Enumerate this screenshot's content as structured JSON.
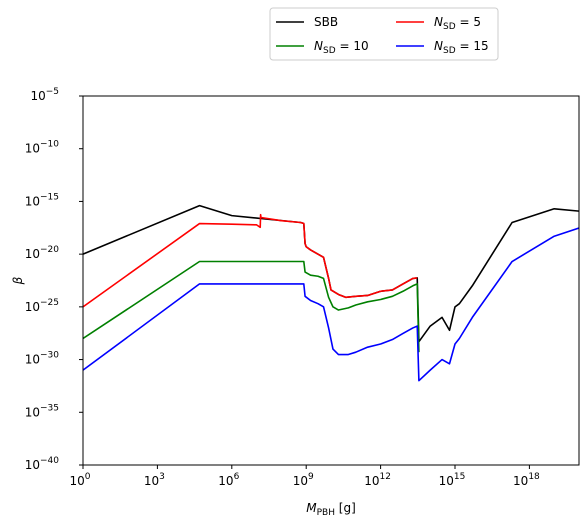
{
  "chart_data": {
    "type": "line",
    "xlabel": "M",
    "xlabel_sub": "PBH",
    "xlabel_unit": " [g]",
    "ylabel": "β",
    "x_scale": "log",
    "y_scale": "log",
    "xlim": [
      1,
      1e+20
    ],
    "ylim": [
      1e-40,
      1e-05
    ],
    "x_ticks": [
      {
        "value": 1,
        "base": "10",
        "exp": "0"
      },
      {
        "value": 1000,
        "base": "10",
        "exp": "3"
      },
      {
        "value": 1000000,
        "base": "10",
        "exp": "6"
      },
      {
        "value": 1000000000,
        "base": "10",
        "exp": "9"
      },
      {
        "value": 1000000000000,
        "base": "10",
        "exp": "12"
      },
      {
        "value": 1000000000000000,
        "base": "10",
        "exp": "15"
      },
      {
        "value": 1000000000000000000,
        "base": "10",
        "exp": "18"
      }
    ],
    "y_ticks": [
      {
        "value": 1e-05,
        "base": "10",
        "exp": "−5"
      },
      {
        "value": 1e-10,
        "base": "10",
        "exp": "−10"
      },
      {
        "value": 1e-15,
        "base": "10",
        "exp": "−15"
      },
      {
        "value": 1e-20,
        "base": "10",
        "exp": "−20"
      },
      {
        "value": 1e-25,
        "base": "10",
        "exp": "−25"
      },
      {
        "value": 1e-30,
        "base": "10",
        "exp": "−30"
      },
      {
        "value": 1e-35,
        "base": "10",
        "exp": "−35"
      },
      {
        "value": 1e-40,
        "base": "10",
        "exp": "−40"
      }
    ],
    "grid": false,
    "legend_position": "top-center",
    "legend_columns": 2,
    "series": [
      {
        "name": "SBB",
        "label_main": "SBB",
        "label_sub": "",
        "label_rest": "",
        "color": "#000000",
        "x": [
          1,
          50000,
          1000000.0,
          600000000.0,
          800000000.0,
          900000000.0,
          1000000000.0,
          1500000000.0,
          3000000000.0,
          5000000000.0,
          8000000000.0,
          10000000000.0,
          20000000000.0,
          40000000000.0,
          100000000000.0,
          300000000000.0,
          1000000000000.0,
          3000000000000.0,
          8000000000000.0,
          20000000000000.0,
          30000000000000.0,
          35000000000000.0,
          100000000000000.0,
          300000000000000.0,
          600000000000000.0,
          1000000000000000.0,
          1500000000000000.0,
          5000000000000000.0,
          2e+17,
          1e+19,
          1e+20
        ],
        "y": [
          1e-20,
          4e-16,
          4.5e-17,
          1e-17,
          8e-18,
          1e-19,
          5e-20,
          2.5e-20,
          1e-20,
          5e-21,
          5e-23,
          4e-24,
          1.5e-24,
          8e-25,
          1e-24,
          1.2e-24,
          3e-24,
          4e-24,
          1.5e-23,
          5e-23,
          5.5e-23,
          5e-29,
          1.5e-27,
          1e-26,
          6e-28,
          1e-25,
          2e-25,
          1e-23,
          1e-17,
          2e-16,
          1.2e-16
        ]
      },
      {
        "name": "N_SD = 5",
        "label_main": "N",
        "label_sub": "SD",
        "label_rest": " = 5",
        "color": "#ff0000",
        "x": [
          1,
          50000,
          1000000.0,
          10000000.0,
          14000000.0,
          14500000.0,
          15000000.0,
          100000000.0,
          600000000.0,
          800000000.0,
          900000000.0,
          1000000000.0,
          1500000000.0,
          3000000000.0,
          5000000000.0,
          8000000000.0,
          10000000000.0,
          20000000000.0,
          40000000000.0,
          100000000000.0,
          300000000000.0,
          1000000000000.0,
          3000000000000.0,
          8000000000000.0,
          20000000000000.0,
          30000000000000.0
        ],
        "y": [
          1e-25,
          8e-18,
          7e-18,
          6e-18,
          3.5e-18,
          5.5e-17,
          3e-17,
          1.5e-17,
          1e-17,
          8e-18,
          1e-19,
          5e-20,
          2.5e-20,
          1e-20,
          5e-21,
          5e-23,
          4e-24,
          1.5e-24,
          8e-25,
          1e-24,
          1.2e-24,
          3e-24,
          4e-24,
          1.5e-23,
          5e-23,
          5.5e-23
        ]
      },
      {
        "name": "N_SD = 10",
        "label_main": "N",
        "label_sub": "SD",
        "label_rest": " = 10",
        "color": "#008000",
        "x": [
          1,
          50000,
          800000000.0,
          900000000.0,
          1500000000.0,
          3000000000.0,
          5000000000.0,
          8000000000.0,
          12000000000.0,
          20000000000.0,
          50000000000.0,
          100000000000.0,
          300000000000.0,
          1000000000000.0,
          3000000000000.0,
          8000000000000.0,
          20000000000000.0,
          30000000000000.0,
          35000000000000.0
        ],
        "y": [
          1e-28,
          2e-21,
          2e-21,
          2e-22,
          1e-22,
          8e-23,
          5e-23,
          8e-25,
          1e-25,
          5e-26,
          8e-26,
          1.5e-25,
          3e-25,
          5e-25,
          1e-24,
          3e-24,
          1e-23,
          1.5e-23,
          5e-30
        ]
      },
      {
        "name": "N_SD = 15",
        "label_main": "N",
        "label_sub": "SD",
        "label_rest": " = 15",
        "color": "#0000ff",
        "x": [
          1,
          50000,
          800000000.0,
          900000000.0,
          1500000000.0,
          3000000000.0,
          5000000000.0,
          8000000000.0,
          12000000000.0,
          20000000000.0,
          50000000000.0,
          100000000000.0,
          300000000000.0,
          1000000000000.0,
          3000000000000.0,
          8000000000000.0,
          20000000000000.0,
          30000000000000.0,
          35000000000000.0,
          100000000000000.0,
          300000000000000.0,
          600000000000000.0,
          1000000000000000.0,
          1500000000000000.0,
          5000000000000000.0,
          2e+17,
          1e+19,
          1e+20
        ],
        "y": [
          1e-31,
          1.5e-23,
          1.5e-23,
          1e-24,
          4e-25,
          2e-25,
          1e-25,
          1e-27,
          1e-29,
          3e-30,
          3e-30,
          5e-30,
          1.5e-29,
          3e-29,
          8e-29,
          3e-28,
          1e-27,
          1.5e-27,
          1e-32,
          1e-31,
          1e-30,
          4e-31,
          3e-29,
          1e-28,
          1e-26,
          2e-21,
          5e-19,
          3e-18
        ]
      }
    ]
  }
}
